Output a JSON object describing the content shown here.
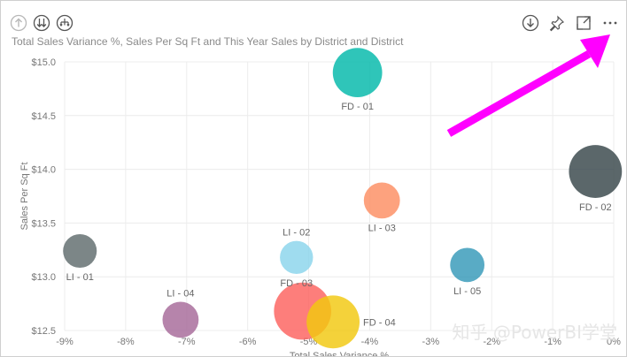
{
  "visual": {
    "title": "Total Sales Variance %, Sales Per Sq Ft and This Year Sales by District and District",
    "left_icons": [
      "arrow-up-circle-icon",
      "double-arrow-down-circle-icon",
      "hierarchy-expand-circle-icon"
    ],
    "right_icons": [
      "download-circle-icon",
      "pin-icon",
      "focus-mode-icon",
      "more-options-icon"
    ],
    "more_label": "···",
    "accent_arrow_color": "#ff00ff"
  },
  "watermark": "知乎 @PowerBI学堂",
  "chart_data": {
    "type": "scatter",
    "title": "Total Sales Variance %, Sales Per Sq Ft and This Year Sales by District and District",
    "xlabel": "Total Sales Variance %",
    "ylabel": "Sales Per Sq Ft",
    "xlim": [
      -9,
      0
    ],
    "ylim": [
      12.5,
      15.0
    ],
    "x_ticks": [
      -9,
      -8,
      -7,
      -6,
      -5,
      -4,
      -3,
      -2,
      -1,
      0
    ],
    "x_tick_labels": [
      "-9%",
      "-8%",
      "-7%",
      "-6%",
      "-5%",
      "-4%",
      "-3%",
      "-2%",
      "-1%",
      "0%"
    ],
    "y_ticks": [
      12.5,
      13.0,
      13.5,
      14.0,
      14.5,
      15.0
    ],
    "y_tick_labels": [
      "$12.5",
      "$13.0",
      "$13.5",
      "$14.0",
      "$14.5",
      "$15.0"
    ],
    "grid": true,
    "points": [
      {
        "label": "FD - 01",
        "x": -4.2,
        "y": 14.9,
        "size": 0.82,
        "color": "#01b8aa"
      },
      {
        "label": "FD - 02",
        "x": -0.3,
        "y": 13.98,
        "size": 0.88,
        "color": "#374649"
      },
      {
        "label": "LI - 03",
        "x": -3.8,
        "y": 13.71,
        "size": 0.6,
        "color": "#fd8d62"
      },
      {
        "label": "LI - 01",
        "x": -8.75,
        "y": 13.24,
        "size": 0.56,
        "color": "#5f6b6d"
      },
      {
        "label": "LI - 02",
        "x": -5.2,
        "y": 13.18,
        "size": 0.55,
        "color": "#8ad4eb"
      },
      {
        "label": "FD - 03",
        "x": -5.2,
        "y": 13.18,
        "size": 0.0,
        "color": "#8ad4eb",
        "label_only": true
      },
      {
        "label": "LI - 05",
        "x": -2.4,
        "y": 13.11,
        "size": 0.57,
        "color": "#3599b8"
      },
      {
        "label": "LI - 04",
        "x": -7.1,
        "y": 12.6,
        "size": 0.6,
        "color": "#a66999"
      },
      {
        "label": "",
        "x": -5.1,
        "y": 12.68,
        "size": 0.95,
        "color": "#fd625e"
      },
      {
        "label": "FD - 04",
        "x": -4.6,
        "y": 12.58,
        "size": 0.88,
        "color": "#f2c80f"
      }
    ]
  }
}
